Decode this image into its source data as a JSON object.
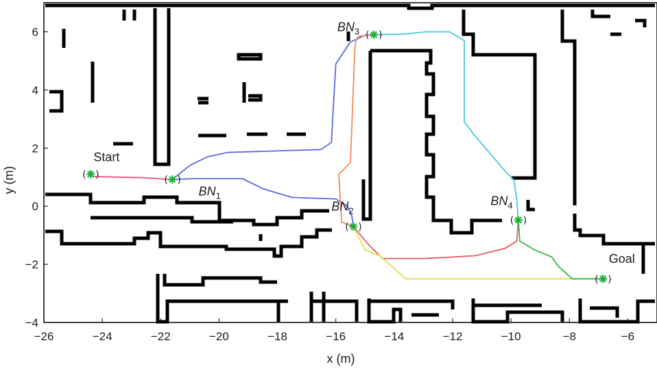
{
  "chart_data": {
    "type": "line",
    "title": "",
    "xlabel": "x (m)",
    "ylabel": "y (m)",
    "xlim": [
      -26,
      -5
    ],
    "ylim": [
      -4,
      7
    ],
    "xticks": [
      -26,
      -24,
      -22,
      -20,
      -18,
      -16,
      -14,
      -12,
      -10,
      -8,
      -6
    ],
    "yticks": [
      -4,
      -2,
      0,
      2,
      4,
      6
    ],
    "xtick_labels": [
      "−26",
      "−24",
      "−22",
      "−20",
      "−18",
      "−16",
      "−14",
      "−12",
      "−10",
      "−8",
      "−6"
    ],
    "ytick_labels": [
      "−4",
      "−2",
      "0",
      "2",
      "4",
      "6"
    ],
    "grid": false,
    "nodes": [
      {
        "id": "start",
        "label": "Start",
        "sub": "",
        "x": -24.4,
        "y": 1.1,
        "label_dx": 0.1,
        "label_dy": 0.45
      },
      {
        "id": "bn1",
        "label": "BN",
        "sub": "1",
        "x": -21.6,
        "y": 0.92,
        "label_dx": 0.9,
        "label_dy": -0.55
      },
      {
        "id": "bn2",
        "label": "BN",
        "sub": "2",
        "x": -15.4,
        "y": -0.7,
        "label_dx": -0.75,
        "label_dy": 0.55
      },
      {
        "id": "bn3",
        "label": "BN",
        "sub": "3",
        "x": -14.7,
        "y": 5.9,
        "label_dx": -1.25,
        "label_dy": 0.12
      },
      {
        "id": "bn4",
        "label": "BN",
        "sub": "4",
        "x": -9.75,
        "y": -0.48,
        "label_dx": -0.95,
        "label_dy": 0.52
      },
      {
        "id": "goal",
        "label": "Goal",
        "sub": "",
        "x": -6.85,
        "y": -2.5,
        "label_dx": 0.2,
        "label_dy": 0.55
      }
    ],
    "series": [
      {
        "color": "#e8508a",
        "x": [
          -24.3,
          -23.5,
          -22.6,
          -22.0,
          -21.6
        ],
        "y": [
          1.02,
          1.0,
          0.98,
          0.94,
          0.92
        ]
      },
      {
        "color": "#5a67d8",
        "x": [
          -21.6,
          -21.0,
          -20.4,
          -19.7,
          -16.5,
          -16.15,
          -16.1,
          -16.0,
          -15.5,
          -15.0,
          -14.8,
          -14.7
        ],
        "y": [
          0.92,
          1.4,
          1.7,
          1.85,
          1.95,
          2.2,
          3.2,
          4.9,
          5.65,
          5.88,
          5.9,
          5.9
        ]
      },
      {
        "color": "#5a67d8",
        "x": [
          -21.6,
          -20.8,
          -19.2,
          -18.5,
          -17.5,
          -16.0,
          -15.6,
          -15.45,
          -15.4
        ],
        "y": [
          0.92,
          0.95,
          0.95,
          0.6,
          0.3,
          0.25,
          0.0,
          -0.35,
          -0.7
        ]
      },
      {
        "color": "#f08a5d",
        "x": [
          -15.4,
          -15.8,
          -15.9,
          -15.5,
          -15.35,
          -15.3,
          -15.2,
          -14.7
        ],
        "y": [
          -0.7,
          -0.55,
          1.1,
          1.5,
          5.4,
          5.75,
          5.85,
          5.9
        ]
      },
      {
        "color": "#4cc6dd",
        "x": [
          -14.7,
          -13.7,
          -12.9,
          -12.1,
          -11.6,
          -11.6,
          -11.3,
          -10.2,
          -9.9,
          -9.8,
          -9.75
        ],
        "y": [
          5.9,
          5.92,
          6.0,
          6.0,
          5.7,
          2.9,
          2.5,
          1.2,
          0.9,
          0.2,
          -0.48
        ]
      },
      {
        "color": "#e05a5a",
        "x": [
          -15.4,
          -14.9,
          -14.4,
          -13.0,
          -12.0,
          -11.2,
          -10.2,
          -9.8,
          -9.75
        ],
        "y": [
          -0.7,
          -1.3,
          -1.8,
          -1.8,
          -1.75,
          -1.7,
          -1.45,
          -1.2,
          -0.48
        ]
      },
      {
        "color": "#e0e040",
        "x": [
          -15.4,
          -15.0,
          -14.5,
          -14.0,
          -13.6,
          -12.0,
          -8.3,
          -6.85
        ],
        "y": [
          -0.7,
          -1.5,
          -1.7,
          -2.15,
          -2.5,
          -2.5,
          -2.5,
          -2.5
        ]
      },
      {
        "color": "#33b84a",
        "x": [
          -9.75,
          -9.7,
          -9.2,
          -8.6,
          -8.4,
          -7.9,
          -6.85
        ],
        "y": [
          -0.48,
          -1.2,
          -1.5,
          -1.75,
          -2.05,
          -2.5,
          -2.5
        ]
      }
    ]
  }
}
